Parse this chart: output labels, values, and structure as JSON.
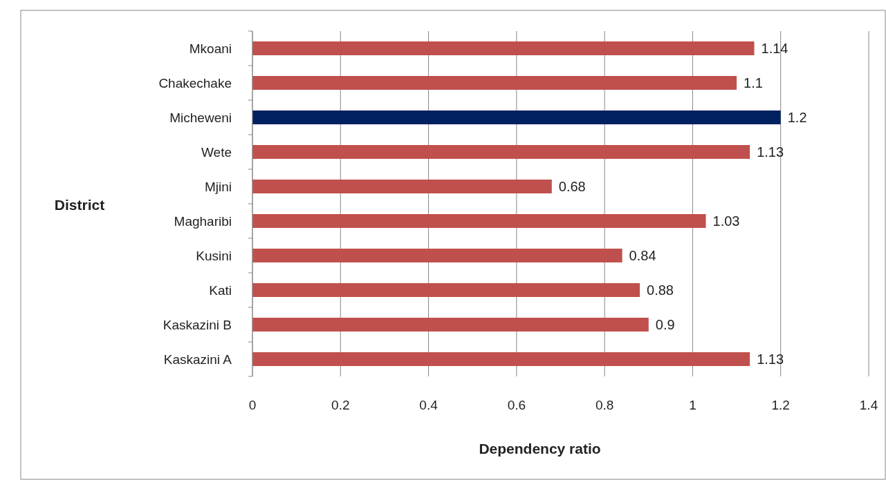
{
  "chart_data": {
    "type": "bar",
    "orientation": "horizontal",
    "xlabel": "Dependency ratio",
    "ylabel": "District",
    "categories": [
      "Mkoani",
      "Chakechake",
      "Micheweni",
      "Wete",
      "Mjini",
      "Magharibi",
      "Kusini",
      "Kati",
      "Kaskazini B",
      "Kaskazini A"
    ],
    "values": [
      1.14,
      1.1,
      1.2,
      1.13,
      0.68,
      1.03,
      0.84,
      0.88,
      0.9,
      1.13
    ],
    "colors": [
      "#c0504d",
      "#c0504d",
      "#002060",
      "#c0504d",
      "#c0504d",
      "#c0504d",
      "#c0504d",
      "#c0504d",
      "#c0504d",
      "#c0504d"
    ],
    "xlim": [
      0,
      1.4
    ],
    "xticks": [
      0,
      0.2,
      0.4,
      0.6,
      0.8,
      1,
      1.2,
      1.4
    ],
    "grid": "x",
    "data_labels": true
  }
}
